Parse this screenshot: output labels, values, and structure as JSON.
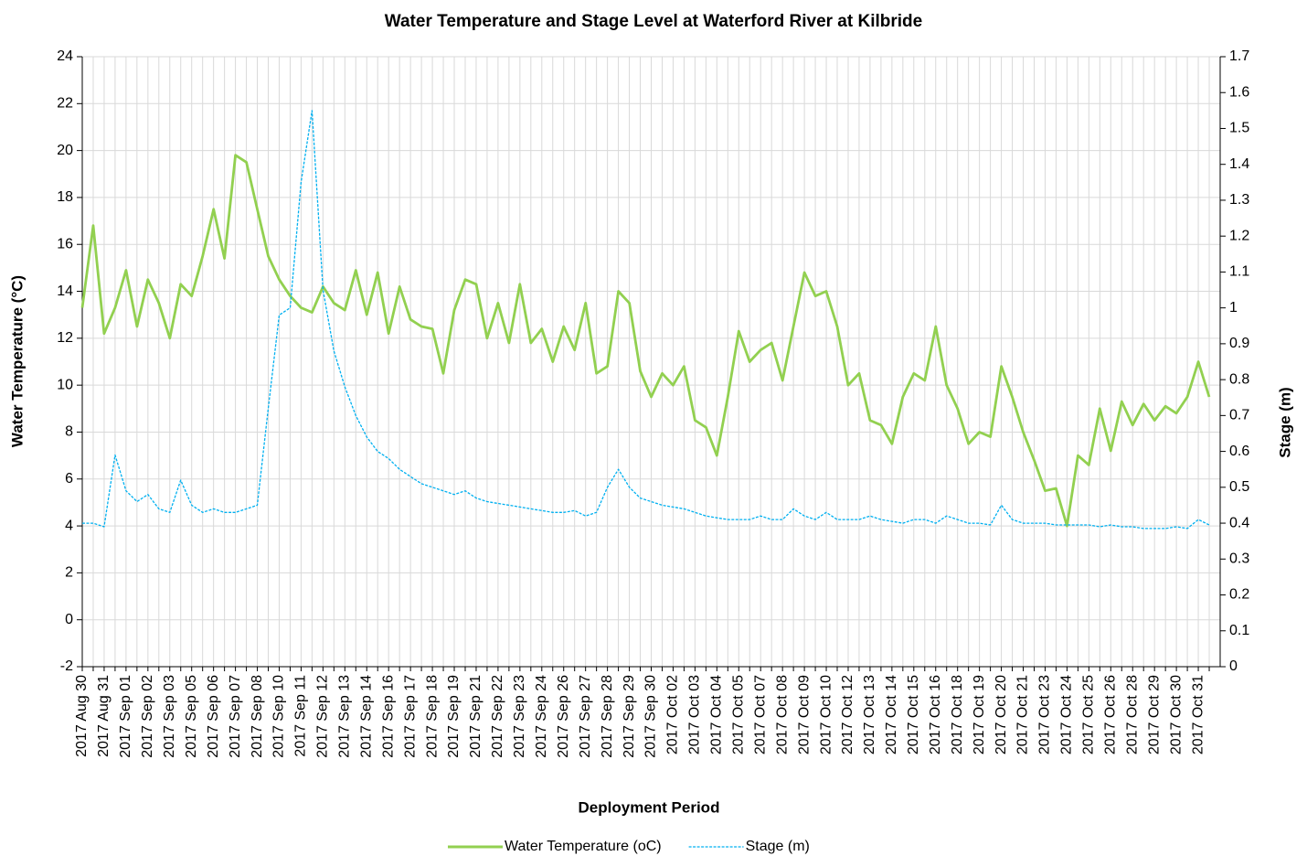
{
  "chart_data": {
    "type": "line",
    "title": "Water Temperature and Stage Level at Waterford River at Kilbride",
    "xlabel": "Deployment Period",
    "ylabel": "Water Temperature (°C)",
    "y2label": "Stage (m)",
    "categories": [
      "2017 Aug 30",
      null,
      "2017 Aug 31",
      null,
      "2017 Sep 01",
      null,
      "2017 Sep 02",
      null,
      "2017 Sep 03",
      null,
      "2017 Sep 05",
      null,
      "2017 Sep 06",
      null,
      "2017 Sep 07",
      null,
      "2017 Sep 08",
      null,
      "2017 Sep 10",
      null,
      "2017 Sep 11",
      null,
      "2017 Sep 12",
      null,
      "2017 Sep 13",
      null,
      "2017 Sep 14",
      null,
      "2017 Sep 16",
      null,
      "2017 Sep 17",
      null,
      "2017 Sep 18",
      null,
      "2017 Sep 19",
      null,
      "2017 Sep 21",
      null,
      "2017 Sep 22",
      null,
      "2017 Sep 23",
      null,
      "2017 Sep 24",
      null,
      "2017 Sep 26",
      null,
      "2017 Sep 27",
      null,
      "2017 Sep 28",
      null,
      "2017 Sep 29",
      null,
      "2017 Sep 30",
      null,
      "2017 Oct 02",
      null,
      "2017 Oct 03",
      null,
      "2017 Oct 04",
      null,
      "2017 Oct 05",
      null,
      "2017 Oct 07",
      null,
      "2017 Oct 08",
      null,
      "2017 Oct 09",
      null,
      "2017 Oct 10",
      null,
      "2017 Oct 12",
      null,
      "2017 Oct 13",
      null,
      "2017 Oct 14",
      null,
      "2017 Oct 15",
      null,
      "2017 Oct 16",
      null,
      "2017 Oct 18",
      null,
      "2017 Oct 19",
      null,
      "2017 Oct 20",
      null,
      "2017 Oct 21",
      null,
      "2017 Oct 23",
      null,
      "2017 Oct 24",
      null,
      "2017 Oct 25",
      null,
      "2017 Oct 26",
      null,
      "2017 Oct 28",
      null,
      "2017 Oct 29",
      null,
      "2017 Oct 30",
      null,
      "2017 Oct 31",
      null
    ],
    "series": [
      {
        "name": "Water Temperature (oC)",
        "color": "#92d050",
        "axis": "y",
        "dash": false,
        "values": [
          13.3,
          16.8,
          12.2,
          13.3,
          14.9,
          12.5,
          14.5,
          13.5,
          12.0,
          14.3,
          13.8,
          15.5,
          17.5,
          15.4,
          19.8,
          19.5,
          17.5,
          15.5,
          14.5,
          13.8,
          13.3,
          13.1,
          14.2,
          13.5,
          13.2,
          14.9,
          13.0,
          14.8,
          12.2,
          14.2,
          12.8,
          12.5,
          12.4,
          10.5,
          13.2,
          14.5,
          14.3,
          12.0,
          13.5,
          11.8,
          14.3,
          11.8,
          12.4,
          11.0,
          12.5,
          11.5,
          13.5,
          10.5,
          10.8,
          14.0,
          13.5,
          10.6,
          9.5,
          10.5,
          10.0,
          10.8,
          8.5,
          8.2,
          7.0,
          9.5,
          12.3,
          11.0,
          11.5,
          11.8,
          10.2,
          12.5,
          14.8,
          13.8,
          14.0,
          12.5,
          10.0,
          10.5,
          8.5,
          8.3,
          7.5,
          9.5,
          10.5,
          10.2,
          12.5,
          10.0,
          9.0,
          7.5,
          8.0,
          7.8,
          10.8,
          9.5,
          8.0,
          6.8,
          5.5,
          5.6,
          4.0,
          7.0,
          6.6,
          9.0,
          7.2,
          9.3,
          8.3,
          9.2,
          8.5,
          9.1,
          8.8,
          9.5,
          11.0,
          9.5
        ]
      },
      {
        "name": "Stage (m)",
        "color": "#00b0f0",
        "axis": "y2",
        "dash": true,
        "values": [
          0.4,
          0.4,
          0.39,
          0.59,
          0.49,
          0.46,
          0.48,
          0.44,
          0.43,
          0.52,
          0.45,
          0.43,
          0.44,
          0.43,
          0.43,
          0.44,
          0.45,
          0.72,
          0.98,
          1.0,
          1.35,
          1.55,
          1.05,
          0.88,
          0.78,
          0.7,
          0.64,
          0.6,
          0.58,
          0.55,
          0.53,
          0.51,
          0.5,
          0.49,
          0.48,
          0.49,
          0.47,
          0.46,
          0.455,
          0.45,
          0.445,
          0.44,
          0.435,
          0.43,
          0.43,
          0.435,
          0.42,
          0.43,
          0.5,
          0.55,
          0.5,
          0.47,
          0.46,
          0.45,
          0.445,
          0.44,
          0.43,
          0.42,
          0.415,
          0.41,
          0.41,
          0.41,
          0.42,
          0.41,
          0.41,
          0.44,
          0.42,
          0.41,
          0.43,
          0.41,
          0.41,
          0.41,
          0.42,
          0.41,
          0.405,
          0.4,
          0.41,
          0.41,
          0.4,
          0.42,
          0.41,
          0.4,
          0.4,
          0.395,
          0.45,
          0.41,
          0.4,
          0.4,
          0.4,
          0.395,
          0.395,
          0.395,
          0.395,
          0.39,
          0.395,
          0.39,
          0.39,
          0.385,
          0.385,
          0.385,
          0.39,
          0.385,
          0.41,
          0.395
        ]
      }
    ],
    "ylim": [
      -2,
      24
    ],
    "yticks": [
      -2,
      0,
      2,
      4,
      6,
      8,
      10,
      12,
      14,
      16,
      18,
      20,
      22,
      24
    ],
    "y2lim": [
      0,
      1.7
    ],
    "y2ticks": [
      0,
      0.1,
      0.2,
      0.3,
      0.4,
      0.5,
      0.6,
      0.7,
      0.8,
      0.9,
      1,
      1.1,
      1.2,
      1.3,
      1.4,
      1.5,
      1.6,
      1.7
    ],
    "grid": true,
    "legend": "bottom"
  }
}
